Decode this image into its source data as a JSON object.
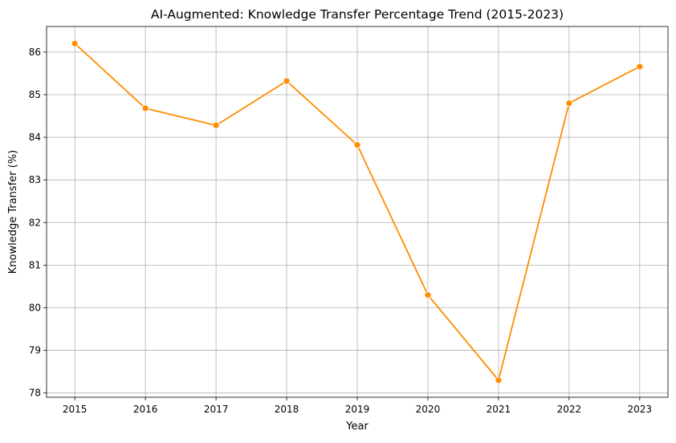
{
  "chart_data": {
    "type": "line",
    "title": "AI-Augmented: Knowledge Transfer Percentage Trend (2015-2023)",
    "xlabel": "Year",
    "ylabel": "Knowledge Transfer (%)",
    "x": [
      2015,
      2016,
      2017,
      2018,
      2019,
      2020,
      2021,
      2022,
      2023
    ],
    "x_tick_labels": [
      "2015",
      "2016",
      "2017",
      "2018",
      "2019",
      "2020",
      "2021",
      "2022",
      "2023"
    ],
    "y_ticks": [
      78,
      79,
      80,
      81,
      82,
      83,
      84,
      85,
      86
    ],
    "y_tick_labels": [
      "78",
      "79",
      "80",
      "81",
      "82",
      "83",
      "84",
      "85",
      "86"
    ],
    "series": [
      {
        "values": [
          86.2,
          84.68,
          84.28,
          85.32,
          83.82,
          80.3,
          78.3,
          84.8,
          85.66
        ]
      }
    ],
    "xlim": [
      2014.6,
      2023.4
    ],
    "ylim": [
      77.9,
      86.6
    ],
    "grid": true,
    "legend": "none",
    "marker": "circle",
    "colors": {
      "line": "#ff8c00",
      "grid": "#b0b0b0",
      "axes": "#000000"
    }
  }
}
